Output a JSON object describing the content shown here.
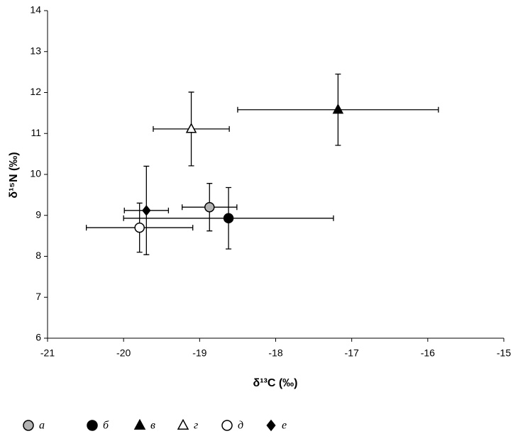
{
  "chart_data": {
    "type": "scatter",
    "x_label": "δ¹³C (‰)",
    "y_label": "δ¹⁵N (‰)",
    "xlim": [
      -21,
      -15
    ],
    "xticks": [
      -21,
      -20,
      -19,
      -18,
      -17,
      -16,
      -15
    ],
    "ylim": [
      6,
      14
    ],
    "yticks": [
      6,
      7,
      8,
      9,
      10,
      11,
      12,
      13,
      14
    ],
    "grid": false,
    "legend": "bottom",
    "series": [
      {
        "name": "а",
        "marker": "circle",
        "color": "#b3b3b3",
        "x": [
          -18.87
        ],
        "values": [
          9.2
        ],
        "xerr": [
          0.36
        ],
        "yerr": [
          0.58
        ]
      },
      {
        "name": "б",
        "marker": "circle",
        "color": "#000000",
        "x": [
          -18.62
        ],
        "values": [
          8.93
        ],
        "xerr": [
          1.38
        ],
        "yerr": [
          0.75
        ]
      },
      {
        "name": "в",
        "marker": "triangle",
        "color": "#000000",
        "x": [
          -17.18
        ],
        "values": [
          11.58
        ],
        "xerr": [
          1.32
        ],
        "yerr": [
          0.87
        ]
      },
      {
        "name": "г",
        "marker": "triangle",
        "color": "#ffffff",
        "x": [
          -19.11
        ],
        "values": [
          11.11
        ],
        "xerr": [
          0.5
        ],
        "yerr": [
          0.9
        ]
      },
      {
        "name": "д",
        "marker": "circle",
        "color": "#ffffff",
        "x": [
          -19.79
        ],
        "values": [
          8.7
        ],
        "xerr": [
          0.7
        ],
        "yerr": [
          0.6
        ]
      },
      {
        "name": "е",
        "marker": "diamond",
        "color": "#000000",
        "x": [
          -19.7
        ],
        "values": [
          9.12
        ],
        "xerr": [
          0.29
        ],
        "yerr": [
          1.08
        ]
      }
    ]
  }
}
